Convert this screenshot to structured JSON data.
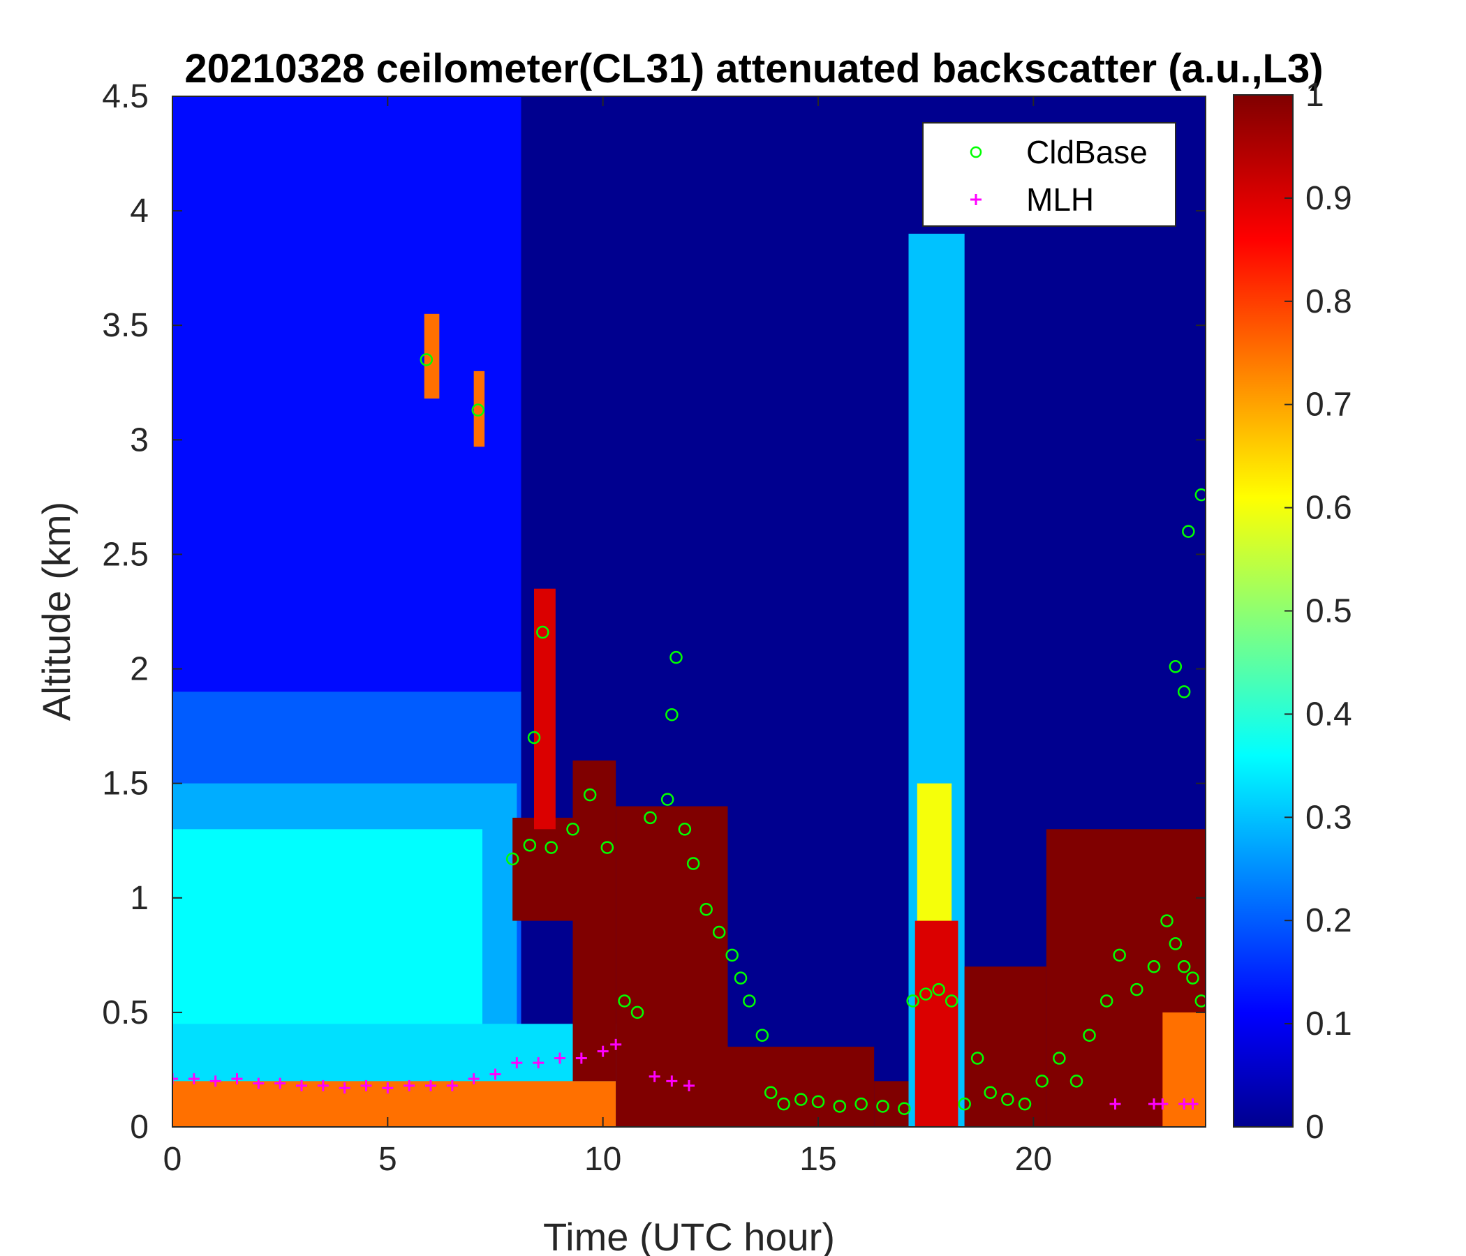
{
  "chart_data": {
    "type": "heatmap",
    "title": "20210328 ceilometer(CL31) attenuated backscatter (a.u.,L3)",
    "xlabel": "Time (UTC hour)",
    "ylabel": "Altitude (km)",
    "xlim": [
      0,
      24
    ],
    "ylim": [
      0,
      4.5
    ],
    "x_ticks": [
      0,
      5,
      10,
      15,
      20
    ],
    "y_ticks": [
      0,
      0.5,
      1,
      1.5,
      2,
      2.5,
      3,
      3.5,
      4,
      4.5
    ],
    "x_tick_labels": [
      "0",
      "5",
      "10",
      "15",
      "20"
    ],
    "y_tick_labels": [
      "0",
      "0.5",
      "1",
      "1.5",
      "2",
      "2.5",
      "3",
      "3.5",
      "4",
      "4.5"
    ],
    "colorbar": {
      "colormap": "jet",
      "range": [
        0,
        1
      ],
      "ticks": [
        0,
        0.1,
        0.2,
        0.3,
        0.4,
        0.5,
        0.6,
        0.7,
        0.8,
        0.9,
        1
      ],
      "tick_labels": [
        "0",
        "0.1",
        "0.2",
        "0.3",
        "0.4",
        "0.5",
        "0.6",
        "0.7",
        "0.8",
        "0.9",
        "1"
      ]
    },
    "background_color": "#00008f",
    "legend": {
      "placement": "top-right",
      "entries": [
        {
          "label": "CldBase",
          "marker": "circle",
          "color": "#00ff00"
        },
        {
          "label": "MLH",
          "marker": "plus",
          "color": "#ff00ff"
        }
      ]
    },
    "backscatter_regions": [
      {
        "t0": 0,
        "t1": 8.1,
        "z0": 0,
        "z1": 4.5,
        "value": 0.12
      },
      {
        "t0": 0,
        "t1": 8.1,
        "z0": 0,
        "z1": 1.9,
        "value": 0.2
      },
      {
        "t0": 0,
        "t1": 8.0,
        "z0": 0,
        "z1": 1.5,
        "value": 0.28
      },
      {
        "t0": 0,
        "t1": 7.2,
        "z0": 0,
        "z1": 1.3,
        "value": 0.36
      },
      {
        "t0": 0,
        "t1": 10.3,
        "z0": 0,
        "z1": 0.45,
        "value": 0.33
      },
      {
        "t0": 0,
        "t1": 10.3,
        "z0": 0,
        "z1": 0.2,
        "value": 0.75
      },
      {
        "t0": 5.85,
        "t1": 6.2,
        "z0": 3.18,
        "z1": 3.55,
        "value": 0.75
      },
      {
        "t0": 7.0,
        "t1": 7.25,
        "z0": 2.97,
        "z1": 3.3,
        "value": 0.75
      },
      {
        "t0": 7.9,
        "t1": 9.3,
        "z0": 0.9,
        "z1": 1.35,
        "value": 1.0
      },
      {
        "t0": 8.4,
        "t1": 8.9,
        "z0": 1.3,
        "z1": 2.35,
        "value": 0.9
      },
      {
        "t0": 9.3,
        "t1": 10.3,
        "z0": 0.2,
        "z1": 1.6,
        "value": 1.0
      },
      {
        "t0": 10.3,
        "t1": 12.9,
        "z0": 0.0,
        "z1": 1.4,
        "value": 1.0
      },
      {
        "t0": 12.9,
        "t1": 16.3,
        "z0": 0.0,
        "z1": 0.35,
        "value": 1.0
      },
      {
        "t0": 16.3,
        "t1": 17.1,
        "z0": 0.0,
        "z1": 0.2,
        "value": 1.0
      },
      {
        "t0": 17.1,
        "t1": 18.4,
        "z0": 0.0,
        "z1": 3.9,
        "value": 0.3
      },
      {
        "t0": 17.3,
        "t1": 18.1,
        "z0": 0.0,
        "z1": 1.5,
        "value": 0.6
      },
      {
        "t0": 17.25,
        "t1": 18.25,
        "z0": 0.0,
        "z1": 0.9,
        "value": 0.9
      },
      {
        "t0": 18.4,
        "t1": 20.3,
        "z0": 0.0,
        "z1": 0.7,
        "value": 1.0
      },
      {
        "t0": 20.3,
        "t1": 24,
        "z0": 0.0,
        "z1": 1.3,
        "value": 1.0
      },
      {
        "t0": 23.0,
        "t1": 24,
        "z0": 0.0,
        "z1": 0.5,
        "value": 0.75
      }
    ],
    "cloud_base": {
      "t": [
        5.9,
        7.1,
        8.6,
        8.4,
        7.9,
        8.3,
        8.8,
        9.3,
        9.7,
        10.1,
        10.5,
        10.8,
        11.1,
        11.5,
        11.6,
        11.7,
        11.9,
        12.1,
        12.4,
        12.7,
        13.0,
        13.2,
        13.4,
        13.7,
        13.9,
        14.2,
        14.6,
        15.0,
        15.5,
        16.0,
        16.5,
        17.0,
        17.2,
        17.5,
        17.8,
        18.1,
        18.4,
        18.7,
        19.0,
        19.4,
        19.8,
        20.2,
        20.6,
        21.0,
        21.3,
        21.7,
        22.0,
        22.4,
        22.8,
        23.1,
        23.3,
        23.5,
        23.7,
        23.9,
        23.6,
        23.9,
        23.3,
        23.5
      ],
      "z": [
        3.35,
        3.13,
        2.16,
        1.7,
        1.17,
        1.23,
        1.22,
        1.3,
        1.45,
        1.22,
        0.55,
        0.5,
        1.35,
        1.43,
        1.8,
        2.05,
        1.3,
        1.15,
        0.95,
        0.85,
        0.75,
        0.65,
        0.55,
        0.4,
        0.15,
        0.1,
        0.12,
        0.11,
        0.09,
        0.1,
        0.09,
        0.08,
        0.55,
        0.58,
        0.6,
        0.55,
        0.1,
        0.3,
        0.15,
        0.12,
        0.1,
        0.2,
        0.3,
        0.2,
        0.4,
        0.55,
        0.75,
        0.6,
        0.7,
        0.9,
        0.8,
        0.7,
        0.65,
        0.55,
        2.6,
        2.76,
        2.01,
        1.9
      ]
    },
    "mlh": {
      "t": [
        0,
        0.5,
        1.0,
        1.5,
        2.0,
        2.5,
        3.0,
        3.5,
        4.0,
        4.5,
        5.0,
        5.5,
        6.0,
        6.5,
        7.0,
        7.5,
        8.0,
        8.5,
        9.0,
        9.5,
        10.0,
        10.3,
        11.2,
        11.6,
        12.0,
        21.9,
        22.8,
        23.0,
        23.5,
        23.7
      ],
      "z": [
        0.21,
        0.21,
        0.2,
        0.21,
        0.19,
        0.19,
        0.18,
        0.18,
        0.17,
        0.18,
        0.17,
        0.18,
        0.18,
        0.18,
        0.21,
        0.23,
        0.28,
        0.28,
        0.3,
        0.3,
        0.33,
        0.36,
        0.22,
        0.2,
        0.18,
        0.1,
        0.1,
        0.1,
        0.1,
        0.1
      ]
    }
  }
}
